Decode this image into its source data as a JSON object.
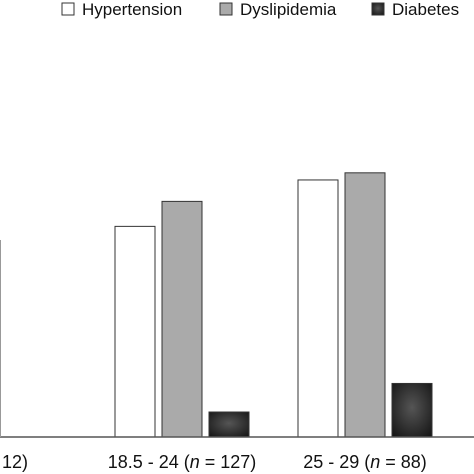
{
  "chart_data": {
    "type": "bar",
    "categories": [
      {
        "pre": "12)",
        "n_symbol": "",
        "post": ""
      },
      {
        "pre": "18.5 - 24 (",
        "n_symbol": "n",
        "post": " = 127)"
      },
      {
        "pre": "25 - 29 (",
        "n_symbol": "n",
        "post": " = 88)"
      }
    ],
    "series": [
      {
        "name": "Hypertension",
        "color": "#ffffff",
        "values": [
          null,
          59,
          72
        ]
      },
      {
        "name": "Dyslipidemia",
        "color": "#aaaaaa",
        "values": [
          null,
          66,
          74
        ]
      },
      {
        "name": "Diabetes",
        "color": "#2a2a2a",
        "values": [
          null,
          7,
          15
        ]
      }
    ],
    "ylim": [
      0,
      100
    ],
    "legend_position": "top-right",
    "grid": false
  }
}
